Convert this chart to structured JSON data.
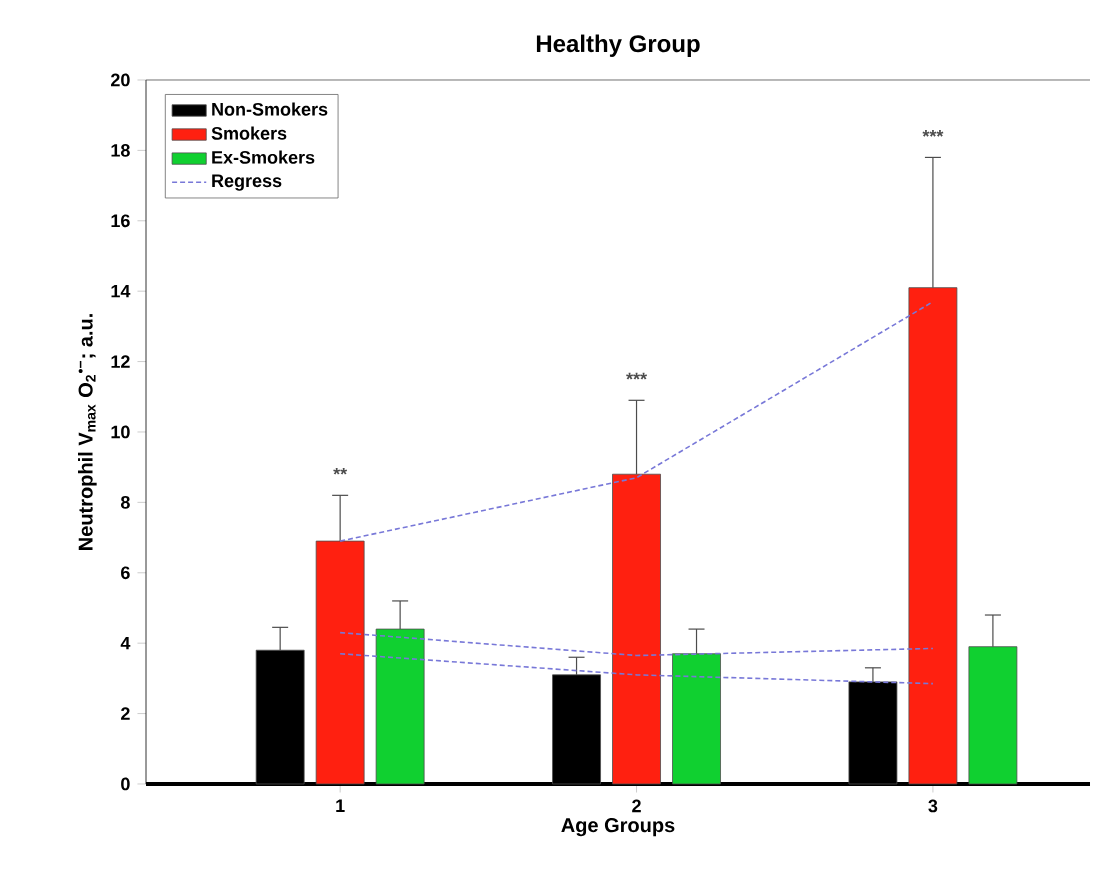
{
  "chart_data": {
    "type": "bar",
    "title": "Healthy Group",
    "xlabel": "Age Groups",
    "ylabel": "Neutrophil V$_{max}$ O$_{2}$$^{•−}$; a.u.",
    "categories": [
      "1",
      "2",
      "3"
    ],
    "series": [
      {
        "name": "Non-Smokers",
        "color": "#000000",
        "values": [
          3.8,
          3.1,
          2.9
        ],
        "errors": [
          [
            3.8,
            4.45
          ],
          [
            3.1,
            3.6
          ],
          [
            2.9,
            3.3
          ]
        ]
      },
      {
        "name": "Smokers",
        "color": "#ff2010",
        "values": [
          6.9,
          8.8,
          14.1
        ],
        "errors": [
          [
            6.9,
            8.2
          ],
          [
            8.8,
            10.9
          ],
          [
            14.1,
            17.8
          ]
        ]
      },
      {
        "name": "Ex-Smokers",
        "color": "#10d030",
        "values": [
          4.4,
          3.7,
          3.9
        ],
        "errors": [
          [
            4.4,
            5.2
          ],
          [
            3.7,
            4.4
          ],
          [
            3.9,
            4.8
          ]
        ]
      },
      {
        "name": "Regress",
        "type": "line",
        "line_style": "dashed",
        "color": "#7878d8",
        "x": [
          "1",
          "2",
          "3"
        ],
        "values": [
          6.9,
          8.7,
          13.7
        ]
      },
      {
        "type": "line",
        "line_style": "dashed",
        "color": "#7878d8",
        "x": [
          "1",
          "2",
          "3"
        ],
        "values": [
          4.3,
          3.65,
          3.85
        ]
      },
      {
        "type": "line",
        "line_style": "dashed",
        "color": "#7878d8",
        "x": [
          "1",
          "2",
          "3"
        ],
        "values": [
          3.7,
          3.1,
          2.85
        ]
      }
    ],
    "annotations": [
      "**",
      "***",
      "***"
    ],
    "ylim": [
      0,
      20
    ],
    "yticks": [
      0,
      2,
      4,
      6,
      8,
      10,
      12,
      14,
      16,
      18,
      20
    ],
    "legend": "top left"
  }
}
